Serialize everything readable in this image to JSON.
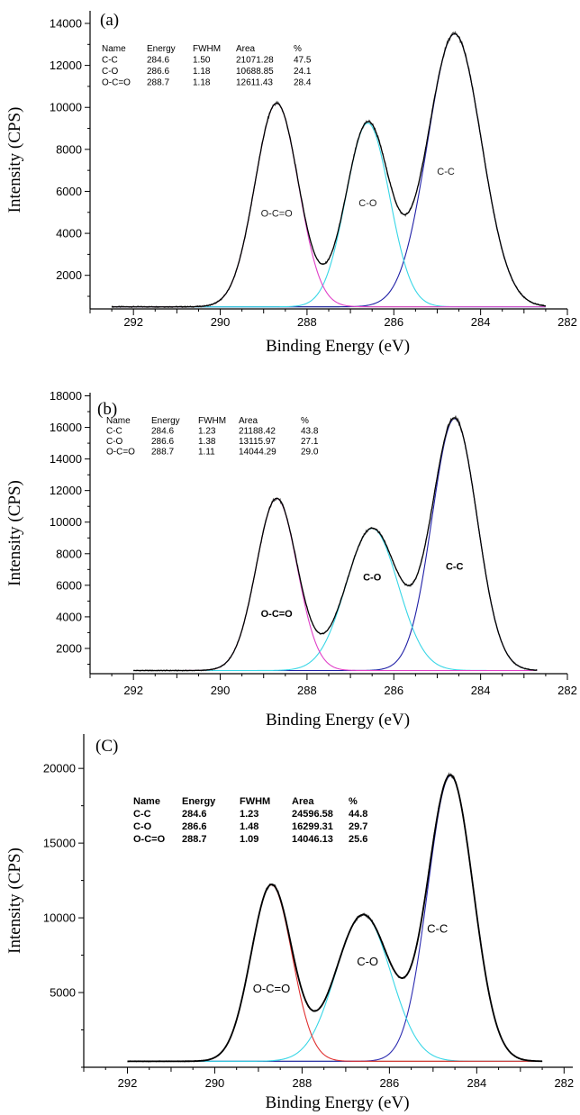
{
  "chart_data": [
    {
      "type": "line",
      "panel_label": "(a)",
      "xlabel": "Binding Energy (eV)",
      "ylabel": "Intensity (CPS)",
      "xlim": [
        293,
        282
      ],
      "x_reversed": true,
      "ylim": [
        400,
        14600
      ],
      "xticks": [
        292,
        290,
        288,
        286,
        284,
        282
      ],
      "yticks": [
        2000,
        4000,
        6000,
        8000,
        10000,
        12000,
        14000
      ],
      "baseline": 500,
      "x_range": [
        292.5,
        282.5
      ],
      "table": {
        "headers": [
          "Name",
          "Energy",
          "FWHM",
          "Area",
          "%"
        ],
        "rows": [
          [
            "C-C",
            "284.6",
            "1.50",
            "21071.28",
            "47.5"
          ],
          [
            "C-O",
            "286.6",
            "1.18",
            "10688.85",
            "24.1"
          ],
          [
            "O-C=O",
            "288.7",
            "1.18",
            "12611.43",
            "28.4"
          ]
        ]
      },
      "series": [
        {
          "name": "C-C",
          "center": 284.6,
          "height": 13000,
          "sigma": 0.62,
          "color": "#1f1fa6"
        },
        {
          "name": "C-O",
          "center": 286.6,
          "height": 8750,
          "sigma": 0.5,
          "color": "#38d6e6"
        },
        {
          "name": "O-C=O",
          "center": 288.7,
          "height": 9700,
          "sigma": 0.5,
          "color": "#e040c8"
        }
      ],
      "annotations": [
        {
          "text": "O-C=O",
          "x": 288.7,
          "y": 4800
        },
        {
          "text": "C-O",
          "x": 286.6,
          "y": 5300
        },
        {
          "text": "C-C",
          "x": 284.8,
          "y": 6800
        }
      ]
    },
    {
      "type": "line",
      "panel_label": "(b)",
      "xlabel": "Binding Energy (eV)",
      "ylabel": "Intensity (CPS)",
      "xlim": [
        293,
        282
      ],
      "x_reversed": true,
      "ylim": [
        400,
        18200
      ],
      "xticks": [
        292,
        290,
        288,
        286,
        284,
        282
      ],
      "yticks": [
        2000,
        4000,
        6000,
        8000,
        10000,
        12000,
        14000,
        16000,
        18000
      ],
      "baseline": 600,
      "x_range": [
        292,
        282.7
      ],
      "table": {
        "headers": [
          "Name",
          "Energy",
          "FWHM",
          "Area",
          "%"
        ],
        "rows": [
          [
            "C-C",
            "284.6",
            "1.23",
            "21188.42",
            "43.8"
          ],
          [
            "C-O",
            "286.6",
            "1.38",
            "13115.97",
            "27.1"
          ],
          [
            "O-C=O",
            "288.7",
            "1.11",
            "14044.29",
            "29.0"
          ]
        ]
      },
      "series": [
        {
          "name": "C-C",
          "center": 284.6,
          "height": 15950,
          "sigma": 0.52,
          "color": "#1f1fa6"
        },
        {
          "name": "C-O",
          "center": 286.5,
          "height": 9000,
          "sigma": 0.6,
          "color": "#38d6e6"
        },
        {
          "name": "O-C=O",
          "center": 288.7,
          "height": 10900,
          "sigma": 0.47,
          "color": "#e040c8"
        }
      ],
      "annotations": [
        {
          "text": "O-C=O",
          "x": 288.7,
          "y": 4000
        },
        {
          "text": "C-O",
          "x": 286.5,
          "y": 6300
        },
        {
          "text": "C-C",
          "x": 284.6,
          "y": 7000
        }
      ]
    },
    {
      "type": "line",
      "panel_label": "(C)",
      "xlabel": "Binding Energy (eV)",
      "ylabel": "Intensity (CPS)",
      "xlim": [
        293,
        281.8
      ],
      "x_reversed": true,
      "ylim": [
        0,
        22300
      ],
      "xticks": [
        292,
        290,
        288,
        286,
        284,
        282
      ],
      "yticks": [
        5000,
        10000,
        15000,
        20000
      ],
      "baseline": 400,
      "x_range": [
        292,
        282.5
      ],
      "table": {
        "headers": [
          "Name",
          "Energy",
          "FWHM",
          "Area",
          "%"
        ],
        "rows": [
          [
            "C-C",
            "284.6",
            "1.23",
            "24596.58",
            "44.8"
          ],
          [
            "C-O",
            "286.6",
            "1.48",
            "16299.31",
            "29.7"
          ],
          [
            "O-C=O",
            "288.7",
            "1.09",
            "14046.13",
            "25.6"
          ]
        ]
      },
      "series": [
        {
          "name": "C-C",
          "center": 284.6,
          "height": 19100,
          "sigma": 0.52,
          "color": "#2a2ab0"
        },
        {
          "name": "C-O",
          "center": 286.6,
          "height": 9800,
          "sigma": 0.63,
          "color": "#38d6e6"
        },
        {
          "name": "O-C=O",
          "center": 288.7,
          "height": 11800,
          "sigma": 0.47,
          "color": "#e03030"
        }
      ],
      "annotations": [
        {
          "text": "O-C=O",
          "x": 288.7,
          "y": 5000
        },
        {
          "text": "C-O",
          "x": 286.5,
          "y": 6800
        },
        {
          "text": "C-C",
          "x": 284.9,
          "y": 9000
        }
      ]
    }
  ]
}
